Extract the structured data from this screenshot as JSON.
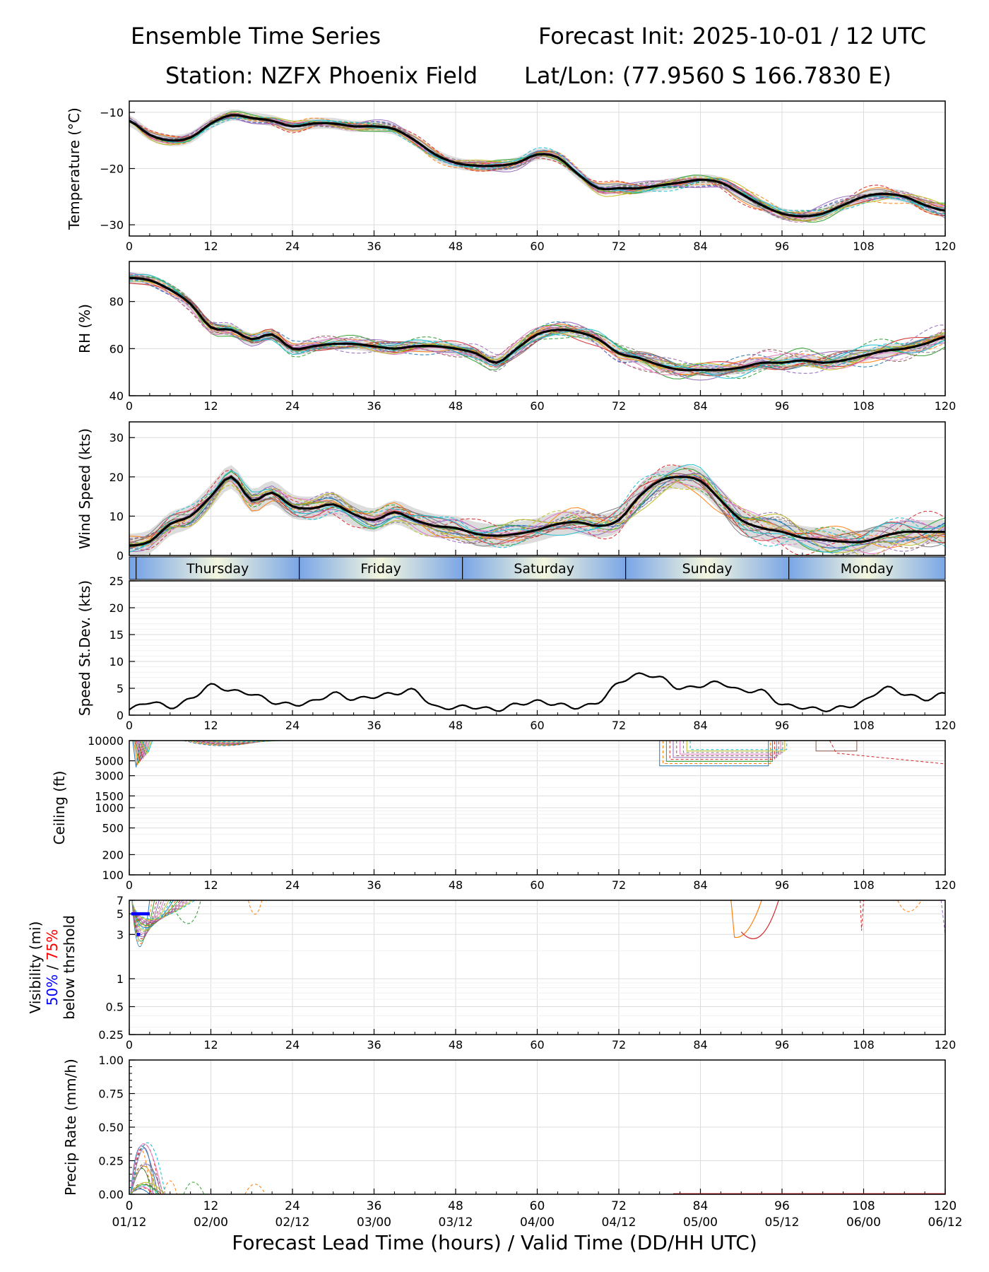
{
  "header": {
    "left1": "Ensemble Time Series",
    "right1": "Forecast Init: 2025-10-01 / 12 UTC",
    "left2": "Station: NZFX Phoenix Field",
    "right2": "Lat/Lon: (77.9560 S 166.7830 E)"
  },
  "xaxis": {
    "label": "Forecast Lead Time (hours) / Valid Time (DD/HH UTC)",
    "range": [
      0,
      120
    ],
    "ticks": [
      0,
      12,
      24,
      36,
      48,
      60,
      72,
      84,
      96,
      108,
      120
    ],
    "tick_labels": [
      "0",
      "12",
      "24",
      "36",
      "48",
      "60",
      "72",
      "84",
      "96",
      "108",
      "120"
    ],
    "valid_times": [
      "01/12",
      "02/00",
      "02/12",
      "03/00",
      "03/12",
      "04/00",
      "04/12",
      "05/00",
      "05/12",
      "06/00",
      "06/12"
    ]
  },
  "day_strip": {
    "days": [
      {
        "label": "Thursday",
        "start": 1,
        "end": 25
      },
      {
        "label": "Friday",
        "start": 25,
        "end": 49
      },
      {
        "label": "Saturday",
        "start": 49,
        "end": 73
      },
      {
        "label": "Sunday",
        "start": 73,
        "end": 97
      },
      {
        "label": "Monday",
        "start": 97,
        "end": 120
      }
    ]
  },
  "colors": {
    "mean": "#000000",
    "spread": "#d3d3d3",
    "grid": "#dcdcdc",
    "members": [
      "#1f77b4",
      "#ff7f0e",
      "#2ca02c",
      "#d62728",
      "#9467bd",
      "#8c564b",
      "#e377c2",
      "#7f7f7f",
      "#bcbd22",
      "#17becf"
    ],
    "threshold50": "#0000ff",
    "threshold75": "#ff0000",
    "strip_edge": "#7aa6e6",
    "strip_mid": "#f4f7df"
  },
  "chart_data": [
    {
      "id": "temperature",
      "type": "line",
      "ylabel": "Temperature (°C)",
      "ylim": [
        -32,
        -8
      ],
      "yticks": [
        -10,
        -20,
        -30
      ],
      "ytick_labels": [
        "−10",
        "−20",
        "−30"
      ],
      "series": [
        {
          "name": "ensemble mean",
          "x": [
            0,
            3,
            6,
            9,
            12,
            15,
            18,
            21,
            24,
            27,
            30,
            33,
            36,
            39,
            42,
            45,
            48,
            51,
            54,
            57,
            60,
            63,
            66,
            69,
            72,
            75,
            78,
            81,
            84,
            87,
            90,
            93,
            96,
            99,
            102,
            105,
            108,
            111,
            114,
            117,
            120
          ],
          "values": [
            -11.5,
            -14,
            -15,
            -14.5,
            -12,
            -10.5,
            -11,
            -11.5,
            -12.5,
            -12,
            -12,
            -12.5,
            -12.5,
            -13,
            -15,
            -17.5,
            -19,
            -19.5,
            -19.5,
            -19,
            -17.5,
            -18,
            -21,
            -23.5,
            -23.5,
            -23.5,
            -23,
            -22.5,
            -22,
            -22.5,
            -24.5,
            -26.5,
            -28,
            -28.5,
            -28,
            -26.5,
            -25,
            -24.5,
            -25,
            -26.5,
            -27.5
          ]
        }
      ],
      "spread": 1.0
    },
    {
      "id": "rh",
      "type": "line",
      "ylabel": "RH (%)",
      "ylim": [
        40,
        97
      ],
      "yticks": [
        40,
        60,
        80
      ],
      "ytick_labels": [
        "40",
        "60",
        "80"
      ],
      "series": [
        {
          "name": "ensemble mean",
          "x": [
            0,
            3,
            6,
            9,
            12,
            15,
            18,
            21,
            24,
            27,
            30,
            33,
            36,
            39,
            42,
            45,
            48,
            51,
            54,
            57,
            60,
            63,
            66,
            69,
            72,
            75,
            78,
            81,
            84,
            87,
            90,
            93,
            96,
            99,
            102,
            105,
            108,
            111,
            114,
            117,
            120
          ],
          "values": [
            90,
            89,
            85,
            79,
            69,
            68,
            64,
            66,
            60,
            61,
            62,
            62,
            61,
            60,
            61,
            61,
            60,
            58,
            54,
            60,
            66,
            68,
            67,
            64,
            58,
            56,
            53,
            51,
            51,
            51,
            52,
            54,
            54,
            55,
            54,
            55,
            57,
            59,
            60,
            62,
            65
          ]
        }
      ],
      "spread": 2.5
    },
    {
      "id": "wind",
      "type": "line",
      "ylabel": "Wind Speed (kts)",
      "ylim": [
        0,
        34
      ],
      "yticks": [
        0,
        10,
        20,
        30
      ],
      "ytick_labels": [
        "0",
        "10",
        "20",
        "30"
      ],
      "series": [
        {
          "name": "ensemble mean",
          "x": [
            0,
            3,
            6,
            9,
            12,
            15,
            18,
            21,
            24,
            27,
            30,
            33,
            36,
            39,
            42,
            45,
            48,
            51,
            54,
            57,
            60,
            63,
            66,
            69,
            72,
            75,
            78,
            81,
            84,
            87,
            90,
            93,
            96,
            99,
            102,
            105,
            108,
            111,
            114,
            117,
            120
          ],
          "values": [
            2.5,
            3.5,
            8,
            10,
            15,
            20,
            14,
            16,
            12.5,
            12,
            13,
            10.5,
            9,
            11,
            9,
            7.5,
            7,
            5.5,
            5,
            5.5,
            6.5,
            8,
            8.5,
            7.5,
            9,
            15,
            19,
            20,
            19,
            14,
            9,
            7,
            6,
            4.5,
            4,
            3.5,
            3.5,
            5,
            6,
            6,
            6
          ]
        }
      ],
      "spread": 3.0
    },
    {
      "id": "speed_stdev",
      "type": "line",
      "ylabel": "Speed St.Dev. (kts)",
      "ylim": [
        0,
        25
      ],
      "yticks": [
        0,
        5,
        10,
        15,
        20,
        25
      ],
      "ytick_labels": [
        "0",
        "5",
        "10",
        "15",
        "20",
        "25"
      ],
      "series": [
        {
          "name": "std dev",
          "x": [
            0,
            3,
            6,
            9,
            12,
            15,
            18,
            21,
            24,
            27,
            30,
            33,
            36,
            39,
            42,
            45,
            48,
            51,
            54,
            57,
            60,
            63,
            66,
            69,
            72,
            75,
            78,
            81,
            84,
            87,
            90,
            93,
            96,
            99,
            102,
            105,
            108,
            111,
            114,
            117,
            120
          ],
          "values": [
            1,
            2.5,
            1.5,
            3,
            5.5,
            4.5,
            4,
            2.5,
            2,
            2.5,
            4,
            3,
            3.5,
            4,
            4.5,
            1.5,
            1.5,
            1.5,
            1,
            2,
            2.5,
            2,
            1.5,
            2.5,
            6,
            7.5,
            7,
            5,
            5.5,
            6,
            4.5,
            4.5,
            2,
            1.5,
            1,
            1.5,
            2.5,
            5,
            4,
            3,
            4
          ]
        }
      ]
    },
    {
      "id": "ceiling",
      "type": "line",
      "ylabel": "Ceiling (ft)",
      "yscale": "log",
      "ylim": [
        100,
        10000
      ],
      "yticks": [
        100,
        200,
        500,
        1000,
        1500,
        3000,
        5000,
        10000
      ],
      "ytick_labels": [
        "100",
        "200",
        "500",
        "1000",
        "1500",
        "3000",
        "5000",
        "10000"
      ]
    },
    {
      "id": "visibility",
      "type": "line",
      "ylabel": "Visibility (mi)",
      "ylabel_50": "50%",
      "ylabel_sep": " / ",
      "ylabel_75": "75%",
      "ylabel_below": "below thrshold",
      "yscale": "log",
      "ylim": [
        0.25,
        7
      ],
      "yticks": [
        0.25,
        0.5,
        1,
        3,
        5,
        7
      ],
      "ytick_labels": [
        "0.25",
        "0.5",
        "1",
        "3",
        "5",
        "7"
      ]
    },
    {
      "id": "precip",
      "type": "line",
      "ylabel": "Precip Rate (mm/h)",
      "ylim": [
        0,
        1
      ],
      "yticks": [
        0,
        0.25,
        0.5,
        0.75,
        1
      ],
      "ytick_labels": [
        "0.00",
        "0.25",
        "0.50",
        "0.75",
        "1.00"
      ]
    }
  ]
}
